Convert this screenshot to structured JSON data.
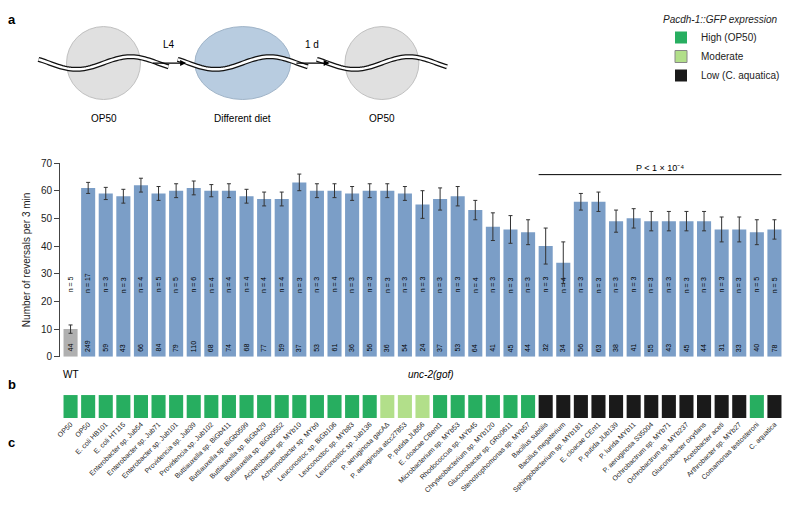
{
  "chart_data": {
    "type": "bar",
    "categories": [
      "OP50",
      "OP50",
      "E. coli HB101",
      "E. coli HT115",
      "Enterobacter sp. Jub54",
      "Enterobacter sp. Jub71",
      "Enterobacter sp. Jub101",
      "Providencia sp. Jub39",
      "Providencia sp. Jub102",
      "Buttiauxella sp. BiGb411",
      "Buttiauxella sp. BiGb0599",
      "Buttiauxella sp. BiGb429",
      "Buttiauxella sp. BiGb0552",
      "Acinetobacter sp. MYb10",
      "Achromobacter sp. MYb9",
      "Leuconostoc sp. BiGb106",
      "Leuconostoc sp. MYb83",
      "Leuconostoc sp. Jub136",
      "P. aeruginosa gacAΔ",
      "P. aeruginosa atcc27853",
      "P. putida JUb56",
      "E. cloacae CBent1",
      "Microbacterium sp. MYb53",
      "Rhodococcus sp. MYb45",
      "Chryseobacterium sp. MYb120",
      "Gluconobacter sp. GRo0611",
      "Stenotrophomonas sp. MYb57",
      "Bacillus subtilis",
      "Bacillus megaterium",
      "Sphingobacterium sp. MYb181",
      "E. cloacae CEnt1",
      "P. putida JUb139",
      "P. lurida MYb11",
      "P. aeruginosa S35004",
      "Ochrobactrum sp. MYb71",
      "Ochrobactrum sp. MYb237",
      "Gluconobacter oxydans",
      "Acetobacter aceti",
      "Arthrobacter sp. MYb27",
      "Comamonas testosteroni",
      "C. aquatica"
    ],
    "values": [
      10,
      61,
      59,
      58,
      62,
      59,
      60,
      61,
      60,
      60,
      58,
      57,
      57,
      63,
      60,
      60,
      59,
      60,
      60,
      59,
      55,
      57,
      58,
      53,
      47,
      46,
      45,
      40,
      34,
      56,
      56,
      49,
      50,
      49,
      49,
      49,
      49,
      46,
      46,
      45,
      46
    ],
    "errors": [
      1.5,
      2.0,
      2.2,
      2.5,
      2.5,
      2.5,
      2.5,
      2.5,
      2.2,
      2.5,
      2.5,
      2.5,
      2.5,
      3.0,
      2.5,
      2.5,
      2.5,
      2.5,
      2.5,
      2.5,
      5.0,
      4.0,
      3.5,
      3.5,
      5.0,
      5.0,
      4.5,
      6.5,
      7.5,
      3.0,
      3.5,
      4.0,
      3.5,
      3.5,
      3.5,
      3.5,
      3.5,
      4.5,
      4.5,
      4.5,
      3.5
    ],
    "colors": [
      "#b0b0b0",
      "#7b9ec7",
      "#7b9ec7",
      "#7b9ec7",
      "#7b9ec7",
      "#7b9ec7",
      "#7b9ec7",
      "#7b9ec7",
      "#7b9ec7",
      "#7b9ec7",
      "#7b9ec7",
      "#7b9ec7",
      "#7b9ec7",
      "#7b9ec7",
      "#7b9ec7",
      "#7b9ec7",
      "#7b9ec7",
      "#7b9ec7",
      "#7b9ec7",
      "#7b9ec7",
      "#7b9ec7",
      "#7b9ec7",
      "#7b9ec7",
      "#7b9ec7",
      "#7b9ec7",
      "#7b9ec7",
      "#7b9ec7",
      "#7b9ec7",
      "#7b9ec7",
      "#7b9ec7",
      "#7b9ec7",
      "#7b9ec7",
      "#7b9ec7",
      "#7b9ec7",
      "#7b9ec7",
      "#7b9ec7",
      "#7b9ec7",
      "#7b9ec7",
      "#7b9ec7",
      "#7b9ec7",
      "#7b9ec7"
    ],
    "count_labels": [
      "44",
      "249",
      "59",
      "43",
      "66",
      "84",
      "79",
      "110",
      "68",
      "74",
      "68",
      "77",
      "59",
      "37",
      "53",
      "61",
      "36",
      "56",
      "36",
      "54",
      "24",
      "37",
      "53",
      "64",
      "41",
      "45",
      "44",
      "32",
      "34",
      "56",
      "63",
      "38",
      "41",
      "55",
      "43",
      "45",
      "44",
      "31",
      "33",
      "40",
      "78"
    ],
    "n_labels": [
      "n = 5",
      "n = 17",
      "n = 3",
      "n = 3",
      "n = 4",
      "n = 5",
      "n = 5",
      "n = 6",
      "n = 4",
      "n = 4",
      "n = 4",
      "n = 4",
      "n = 4",
      "n = 3",
      "n = 3",
      "n = 4",
      "n = 3",
      "n = 3",
      "n = 3",
      "n = 3",
      "n = 3",
      "n = 3",
      "n = 3",
      "n = 4",
      "n = 3",
      "n = 3",
      "n = 3",
      "n = 3",
      "n = 4",
      "n = 3",
      "n = 3",
      "n = 3",
      "n = 3",
      "n = 3",
      "n = 3",
      "n = 3",
      "n = 3",
      "n = 3",
      "n = 3",
      "n = 5",
      "n = 5"
    ],
    "strip_colors": [
      "#27ae60",
      "#27ae60",
      "#27ae60",
      "#27ae60",
      "#27ae60",
      "#27ae60",
      "#27ae60",
      "#27ae60",
      "#27ae60",
      "#27ae60",
      "#27ae60",
      "#27ae60",
      "#27ae60",
      "#27ae60",
      "#27ae60",
      "#27ae60",
      "#27ae60",
      "#27ae60",
      "#b2df8a",
      "#b2df8a",
      "#b2df8a",
      "#27ae60",
      "#27ae60",
      "#27ae60",
      "#27ae60",
      "#27ae60",
      "#27ae60",
      "#1a1a1a",
      "#1a1a1a",
      "#1a1a1a",
      "#1a1a1a",
      "#1a1a1a",
      "#1a1a1a",
      "#1a1a1a",
      "#1a1a1a",
      "#1a1a1a",
      "#1a1a1a",
      "#1a1a1a",
      "#1a1a1a",
      "#27ae60",
      "#1a1a1a"
    ],
    "legend": "upper right",
    "legend_title": "Pacdh-1::GFP expression",
    "legend_entries": [
      {
        "name": "High (OP50)",
        "color": "#27ae60"
      },
      {
        "name": "Moderate",
        "color": "#b2df8a"
      },
      {
        "name": "Low (C. aquatica)",
        "color": "#1a1a1a"
      }
    ],
    "ylabel": "Number of reversals per 3 min",
    "ylim": [
      0,
      70
    ],
    "yticks": [
      0,
      10,
      20,
      30,
      40,
      50,
      60,
      70
    ],
    "grid": false,
    "groups": [
      {
        "label": "WT",
        "start": 0,
        "end": 0
      },
      {
        "label": "unc-2(gof)",
        "start": 1,
        "end": 40
      }
    ],
    "significance": {
      "start": 27,
      "end": 40,
      "text": "P < 1 × 10⁻⁴"
    },
    "panel_labels": [
      "a",
      "b",
      "c"
    ],
    "diagram": {
      "panels": [
        {
          "label": "OP50",
          "color": "#e0e0e0"
        },
        {
          "label": "Different diet",
          "color": "#b8cce0"
        },
        {
          "label": "OP50",
          "color": "#e0e0e0"
        }
      ],
      "steps": [
        "L4",
        "1 d"
      ]
    }
  }
}
